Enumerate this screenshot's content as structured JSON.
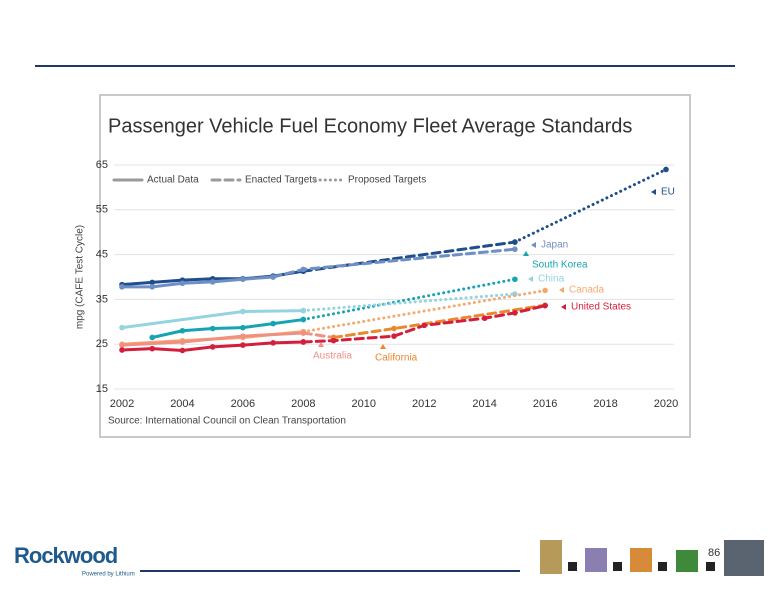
{
  "slide": {
    "page_number": "86"
  },
  "logo": {
    "name": "Rockwood",
    "tagline": "Powered by Lithium"
  },
  "chart_data": {
    "type": "line",
    "title": "Passenger Vehicle Fuel Economy Fleet Average Standards",
    "y_label": "mpg (CAFE Test Cycle)",
    "source": "Source: International Council on Clean Transportation",
    "xlim": [
      2002,
      2020
    ],
    "xticks": [
      2002,
      2004,
      2006,
      2008,
      2010,
      2012,
      2014,
      2016,
      2018,
      2020
    ],
    "ylim": [
      15,
      65
    ],
    "yticks": [
      15,
      25,
      35,
      45,
      55,
      65
    ],
    "grid": true,
    "legend": [
      {
        "label": "Actual Data",
        "style": "solid"
      },
      {
        "label": "Enacted Targets",
        "style": "dashed"
      },
      {
        "label": "Proposed Targets",
        "style": "dotted"
      }
    ],
    "series": [
      {
        "name": "EU",
        "color": "#1f4e8c",
        "segments": [
          {
            "style": "solid",
            "x": [
              2002,
              2003,
              2004,
              2005,
              2006,
              2007,
              2008
            ],
            "values": [
              38.3,
              38.8,
              39.3,
              39.6,
              39.6,
              40.2,
              41.3
            ]
          },
          {
            "style": "dashed",
            "x": [
              2008,
              2015
            ],
            "values": [
              41.3,
              47.8
            ]
          },
          {
            "style": "dotted",
            "x": [
              2015,
              2020
            ],
            "values": [
              47.8,
              64
            ]
          }
        ]
      },
      {
        "name": "Japan",
        "color": "#6e8fc6",
        "segments": [
          {
            "style": "solid",
            "x": [
              2002,
              2003,
              2004,
              2005,
              2006,
              2007
            ],
            "values": [
              37.8,
              37.8,
              38.6,
              38.9,
              39.5,
              40
            ]
          },
          {
            "style": "dashed",
            "x": [
              2007,
              2008,
              2015
            ],
            "values": [
              40,
              41.7,
              46.2
            ]
          }
        ]
      },
      {
        "name": "South Korea",
        "color": "#17a3b3",
        "segments": [
          {
            "style": "solid",
            "x": [
              2003,
              2004,
              2005,
              2006,
              2007,
              2008
            ],
            "values": [
              26.5,
              28,
              28.5,
              28.7,
              29.6,
              30.5
            ]
          },
          {
            "style": "dotted",
            "x": [
              2008,
              2015
            ],
            "values": [
              30.5,
              39.5
            ]
          }
        ]
      },
      {
        "name": "China",
        "color": "#93d4e0",
        "segments": [
          {
            "style": "solid",
            "x": [
              2002,
              2006,
              2008
            ],
            "values": [
              28.7,
              32.3,
              32.5
            ]
          },
          {
            "style": "dotted",
            "x": [
              2008,
              2015
            ],
            "values": [
              32.5,
              36.2
            ]
          }
        ]
      },
      {
        "name": "Canada",
        "color": "#f5a96e",
        "segments": [
          {
            "style": "solid",
            "x": [
              2002,
              2004,
              2006,
              2008
            ],
            "values": [
              25,
              25.8,
              26.5,
              27.8
            ]
          },
          {
            "style": "dotted",
            "x": [
              2008,
              2016
            ],
            "values": [
              27.8,
              37
            ]
          }
        ]
      },
      {
        "name": "Australia",
        "color": "#f09080",
        "segments": [
          {
            "style": "solid",
            "x": [
              2002,
              2004,
              2006,
              2008
            ],
            "values": [
              24.8,
              25.5,
              26.8,
              27.5
            ]
          },
          {
            "style": "dashed",
            "x": [
              2008,
              2009
            ],
            "values": [
              27.5,
              26.5
            ]
          }
        ]
      },
      {
        "name": "California",
        "color": "#e8892d",
        "segments": [
          {
            "style": "dashed",
            "x": [
              2009,
              2011,
              2016
            ],
            "values": [
              26.5,
              28.5,
              33.7
            ]
          }
        ]
      },
      {
        "name": "United States",
        "color": "#d41f3c",
        "segments": [
          {
            "style": "solid",
            "x": [
              2002,
              2003,
              2004,
              2005,
              2006,
              2007,
              2008
            ],
            "values": [
              23.7,
              24,
              23.6,
              24.4,
              24.8,
              25.3,
              25.5
            ]
          },
          {
            "style": "dashed",
            "x": [
              2008,
              2009,
              2011,
              2012,
              2014,
              2015,
              2016
            ],
            "values": [
              25.5,
              25.8,
              26.8,
              29.2,
              30.8,
              32,
              33.6
            ]
          }
        ]
      }
    ]
  }
}
